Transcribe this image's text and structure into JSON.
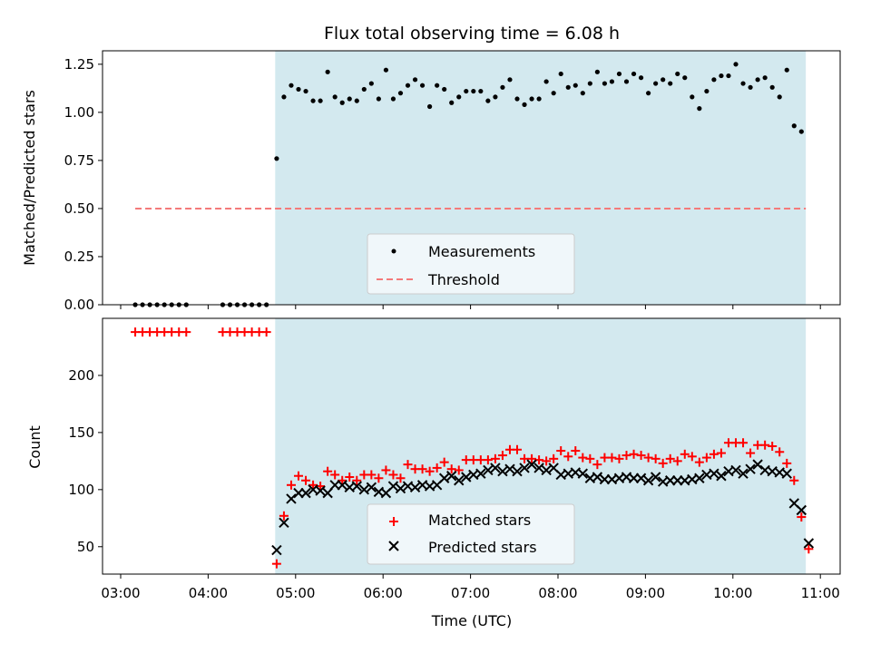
{
  "chart_data": [
    {
      "type": "scatter",
      "title": "Flux total observing time = 6.08 h",
      "xlabel": "",
      "ylabel": "Matched/Predicted stars",
      "ylim": [
        0.0,
        1.32
      ],
      "yticks": [
        "0.00",
        "0.25",
        "0.50",
        "0.75",
        "1.00",
        "1.25"
      ],
      "shaded_region": {
        "x_start": "04:46",
        "x_end": "10:50",
        "color": "#d3e9ef"
      },
      "legend": {
        "placement": "lower-center"
      },
      "series": [
        {
          "name": "Measurements",
          "marker": "dot",
          "color": "#000000",
          "points": [
            [
              "03:10",
              0
            ],
            [
              "03:15",
              0
            ],
            [
              "03:20",
              0
            ],
            [
              "03:25",
              0
            ],
            [
              "03:30",
              0
            ],
            [
              "03:35",
              0
            ],
            [
              "03:40",
              0
            ],
            [
              "03:45",
              0
            ],
            [
              "04:10",
              0
            ],
            [
              "04:15",
              0
            ],
            [
              "04:20",
              0
            ],
            [
              "04:25",
              0
            ],
            [
              "04:30",
              0
            ],
            [
              "04:35",
              0
            ],
            [
              "04:40",
              0
            ],
            [
              "04:47",
              0.76
            ],
            [
              "04:52",
              1.08
            ],
            [
              "04:57",
              1.14
            ],
            [
              "05:02",
              1.12
            ],
            [
              "05:07",
              1.11
            ],
            [
              "05:12",
              1.06
            ],
            [
              "05:17",
              1.06
            ],
            [
              "05:22",
              1.21
            ],
            [
              "05:27",
              1.08
            ],
            [
              "05:32",
              1.05
            ],
            [
              "05:37",
              1.07
            ],
            [
              "05:42",
              1.06
            ],
            [
              "05:47",
              1.12
            ],
            [
              "05:52",
              1.15
            ],
            [
              "05:57",
              1.07
            ],
            [
              "06:02",
              1.22
            ],
            [
              "06:07",
              1.07
            ],
            [
              "06:12",
              1.1
            ],
            [
              "06:17",
              1.14
            ],
            [
              "06:22",
              1.17
            ],
            [
              "06:27",
              1.14
            ],
            [
              "06:32",
              1.03
            ],
            [
              "06:37",
              1.14
            ],
            [
              "06:42",
              1.12
            ],
            [
              "06:47",
              1.05
            ],
            [
              "06:52",
              1.08
            ],
            [
              "06:57",
              1.11
            ],
            [
              "07:02",
              1.11
            ],
            [
              "07:07",
              1.11
            ],
            [
              "07:12",
              1.06
            ],
            [
              "07:17",
              1.08
            ],
            [
              "07:22",
              1.13
            ],
            [
              "07:27",
              1.17
            ],
            [
              "07:32",
              1.07
            ],
            [
              "07:37",
              1.04
            ],
            [
              "07:42",
              1.07
            ],
            [
              "07:47",
              1.07
            ],
            [
              "07:52",
              1.16
            ],
            [
              "07:57",
              1.1
            ],
            [
              "08:02",
              1.2
            ],
            [
              "08:07",
              1.13
            ],
            [
              "08:12",
              1.14
            ],
            [
              "08:17",
              1.1
            ],
            [
              "08:22",
              1.15
            ],
            [
              "08:27",
              1.21
            ],
            [
              "08:32",
              1.15
            ],
            [
              "08:37",
              1.16
            ],
            [
              "08:42",
              1.2
            ],
            [
              "08:47",
              1.16
            ],
            [
              "08:52",
              1.2
            ],
            [
              "08:57",
              1.18
            ],
            [
              "09:02",
              1.1
            ],
            [
              "09:07",
              1.15
            ],
            [
              "09:12",
              1.17
            ],
            [
              "09:17",
              1.15
            ],
            [
              "09:22",
              1.2
            ],
            [
              "09:27",
              1.18
            ],
            [
              "09:32",
              1.08
            ],
            [
              "09:37",
              1.02
            ],
            [
              "09:42",
              1.11
            ],
            [
              "09:47",
              1.17
            ],
            [
              "09:52",
              1.19
            ],
            [
              "09:57",
              1.19
            ],
            [
              "10:02",
              1.25
            ],
            [
              "10:07",
              1.15
            ],
            [
              "10:12",
              1.13
            ],
            [
              "10:17",
              1.17
            ],
            [
              "10:22",
              1.18
            ],
            [
              "10:27",
              1.13
            ],
            [
              "10:32",
              1.08
            ],
            [
              "10:37",
              1.22
            ],
            [
              "10:42",
              0.93
            ],
            [
              "10:47",
              0.9
            ]
          ]
        },
        {
          "name": "Threshold",
          "style": "dashed",
          "color": "#f47a7a",
          "points": [
            [
              "03:10",
              0.5
            ],
            [
              "10:50",
              0.5
            ]
          ]
        }
      ]
    },
    {
      "type": "scatter",
      "title": "",
      "xlabel": "Time (UTC)",
      "ylabel": "Count",
      "ylim": [
        26,
        250
      ],
      "yticks": [
        "50",
        "100",
        "150",
        "200"
      ],
      "xticks": [
        "03:00",
        "04:00",
        "05:00",
        "06:00",
        "07:00",
        "08:00",
        "09:00",
        "10:00",
        "11:00"
      ],
      "shaded_region": {
        "x_start": "04:46",
        "x_end": "10:50",
        "color": "#d3e9ef"
      },
      "legend": {
        "placement": "lower-center"
      },
      "series": [
        {
          "name": "Matched stars",
          "marker": "plus",
          "color": "#ff0000",
          "points": [
            [
              "03:10",
              238
            ],
            [
              "03:15",
              238
            ],
            [
              "03:20",
              238
            ],
            [
              "03:25",
              238
            ],
            [
              "03:30",
              238
            ],
            [
              "03:35",
              238
            ],
            [
              "03:40",
              238
            ],
            [
              "03:45",
              238
            ],
            [
              "04:10",
              238
            ],
            [
              "04:15",
              238
            ],
            [
              "04:20",
              238
            ],
            [
              "04:25",
              238
            ],
            [
              "04:30",
              238
            ],
            [
              "04:35",
              238
            ],
            [
              "04:40",
              238
            ],
            [
              "04:47",
              35
            ],
            [
              "04:52",
              77
            ],
            [
              "04:57",
              104
            ],
            [
              "05:02",
              112
            ],
            [
              "05:07",
              108
            ],
            [
              "05:12",
              104
            ],
            [
              "05:17",
              103
            ],
            [
              "05:22",
              116
            ],
            [
              "05:27",
              113
            ],
            [
              "05:32",
              108
            ],
            [
              "05:37",
              111
            ],
            [
              "05:42",
              108
            ],
            [
              "05:47",
              113
            ],
            [
              "05:52",
              113
            ],
            [
              "05:57",
              110
            ],
            [
              "06:02",
              117
            ],
            [
              "06:07",
              113
            ],
            [
              "06:12",
              110
            ],
            [
              "06:17",
              122
            ],
            [
              "06:22",
              118
            ],
            [
              "06:27",
              118
            ],
            [
              "06:32",
              116
            ],
            [
              "06:37",
              119
            ],
            [
              "06:42",
              124
            ],
            [
              "06:47",
              118
            ],
            [
              "06:52",
              117
            ],
            [
              "06:57",
              126
            ],
            [
              "07:02",
              126
            ],
            [
              "07:07",
              126
            ],
            [
              "07:12",
              126
            ],
            [
              "07:17",
              127
            ],
            [
              "07:22",
              130
            ],
            [
              "07:27",
              135
            ],
            [
              "07:32",
              135
            ],
            [
              "07:37",
              127
            ],
            [
              "07:42",
              127
            ],
            [
              "07:47",
              126
            ],
            [
              "07:52",
              125
            ],
            [
              "07:57",
              127
            ],
            [
              "08:02",
              134
            ],
            [
              "08:07",
              129
            ],
            [
              "08:12",
              134
            ],
            [
              "08:17",
              128
            ],
            [
              "08:22",
              127
            ],
            [
              "08:27",
              122
            ],
            [
              "08:32",
              128
            ],
            [
              "08:37",
              128
            ],
            [
              "08:42",
              127
            ],
            [
              "08:47",
              130
            ],
            [
              "08:52",
              131
            ],
            [
              "08:57",
              130
            ],
            [
              "09:02",
              128
            ],
            [
              "09:07",
              127
            ],
            [
              "09:12",
              123
            ],
            [
              "09:17",
              127
            ],
            [
              "09:22",
              125
            ],
            [
              "09:27",
              131
            ],
            [
              "09:32",
              129
            ],
            [
              "09:37",
              124
            ],
            [
              "09:42",
              128
            ],
            [
              "09:47",
              131
            ],
            [
              "09:52",
              132
            ],
            [
              "09:57",
              141
            ],
            [
              "10:02",
              141
            ],
            [
              "10:07",
              141
            ],
            [
              "10:12",
              132
            ],
            [
              "10:17",
              139
            ],
            [
              "10:22",
              139
            ],
            [
              "10:27",
              138
            ],
            [
              "10:32",
              133
            ],
            [
              "10:37",
              123
            ],
            [
              "10:42",
              108
            ],
            [
              "10:47",
              76
            ],
            [
              "10:52",
              48
            ]
          ]
        },
        {
          "name": "Predicted stars",
          "marker": "cross",
          "color": "#000000",
          "points": [
            [
              "04:47",
              47
            ],
            [
              "04:52",
              71
            ],
            [
              "04:57",
              92
            ],
            [
              "05:02",
              97
            ],
            [
              "05:07",
              97
            ],
            [
              "05:12",
              100
            ],
            [
              "05:17",
              99
            ],
            [
              "05:22",
              97
            ],
            [
              "05:27",
              104
            ],
            [
              "05:32",
              104
            ],
            [
              "05:37",
              102
            ],
            [
              "05:42",
              103
            ],
            [
              "05:47",
              100
            ],
            [
              "05:52",
              102
            ],
            [
              "05:57",
              98
            ],
            [
              "06:02",
              97
            ],
            [
              "06:07",
              103
            ],
            [
              "06:12",
              101
            ],
            [
              "06:17",
              103
            ],
            [
              "06:22",
              102
            ],
            [
              "06:27",
              104
            ],
            [
              "06:32",
              103
            ],
            [
              "06:37",
              104
            ],
            [
              "06:42",
              110
            ],
            [
              "06:47",
              112
            ],
            [
              "06:52",
              108
            ],
            [
              "06:57",
              111
            ],
            [
              "07:02",
              113
            ],
            [
              "07:07",
              114
            ],
            [
              "07:12",
              117
            ],
            [
              "07:17",
              119
            ],
            [
              "07:22",
              116
            ],
            [
              "07:27",
              118
            ],
            [
              "07:32",
              116
            ],
            [
              "07:37",
              119
            ],
            [
              "07:42",
              122
            ],
            [
              "07:47",
              119
            ],
            [
              "07:52",
              117
            ],
            [
              "07:57",
              119
            ],
            [
              "08:02",
              113
            ],
            [
              "08:07",
              114
            ],
            [
              "08:12",
              115
            ],
            [
              "08:17",
              114
            ],
            [
              "08:22",
              110
            ],
            [
              "08:27",
              111
            ],
            [
              "08:32",
              109
            ],
            [
              "08:37",
              109
            ],
            [
              "08:42",
              110
            ],
            [
              "08:47",
              111
            ],
            [
              "08:52",
              110
            ],
            [
              "08:57",
              110
            ],
            [
              "09:02",
              108
            ],
            [
              "09:07",
              111
            ],
            [
              "09:12",
              107
            ],
            [
              "09:17",
              108
            ],
            [
              "09:22",
              108
            ],
            [
              "09:27",
              108
            ],
            [
              "09:32",
              109
            ],
            [
              "09:37",
              110
            ],
            [
              "09:42",
              113
            ],
            [
              "09:47",
              114
            ],
            [
              "09:52",
              112
            ],
            [
              "09:57",
              116
            ],
            [
              "10:02",
              117
            ],
            [
              "10:07",
              114
            ],
            [
              "10:12",
              118
            ],
            [
              "10:17",
              122
            ],
            [
              "10:22",
              117
            ],
            [
              "10:27",
              116
            ],
            [
              "10:32",
              115
            ],
            [
              "10:37",
              114
            ],
            [
              "10:42",
              88
            ],
            [
              "10:47",
              82
            ],
            [
              "10:52",
              53
            ]
          ]
        }
      ]
    }
  ]
}
